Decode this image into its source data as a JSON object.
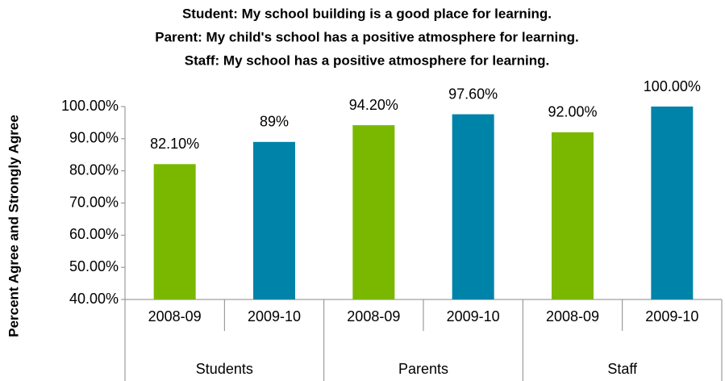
{
  "chart_data": {
    "type": "bar",
    "title": [
      "Student: My school building is a good place for learning.",
      "Parent: My child's school has a positive atmosphere for learning.",
      "Staff: My school has a positive atmosphere for learning."
    ],
    "y_label": "Percent Agree and Strongly Agree",
    "categories": [
      "2008-09",
      "2009-10",
      "2008-09",
      "2009-10",
      "2008-09",
      "2009-10"
    ],
    "groups": [
      "Students",
      "Parents",
      "Staff"
    ],
    "values": [
      82.1,
      89,
      94.2,
      97.6,
      92,
      100
    ],
    "value_labels": [
      "82.10%",
      "89%",
      "94.20%",
      "97.60%",
      "92.00%",
      "100.00%"
    ],
    "colors": [
      "#7ab800",
      "#0083a9",
      "#7ab800",
      "#0083a9",
      "#7ab800",
      "#0083a9"
    ],
    "ylim": [
      40,
      100
    ],
    "yticks": [
      {
        "value": 40,
        "label": "40.00%"
      },
      {
        "value": 50,
        "label": "50.00%"
      },
      {
        "value": 60,
        "label": "60.00%"
      },
      {
        "value": 70,
        "label": "70.00%"
      },
      {
        "value": 80,
        "label": "80.00%"
      },
      {
        "value": 90,
        "label": "90.00%"
      },
      {
        "value": 100,
        "label": "100.00%"
      }
    ],
    "grid": false
  }
}
